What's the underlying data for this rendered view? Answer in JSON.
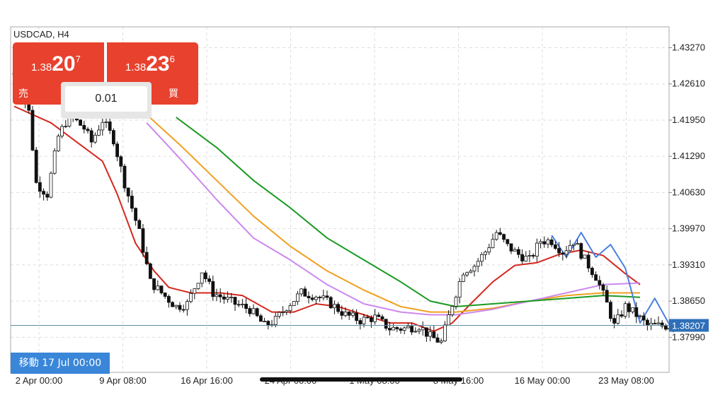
{
  "symbol_label": "USDCAD, H4",
  "trade_panel": {
    "sell": {
      "small": "1.38",
      "big": "20",
      "sup": "7",
      "label": "売"
    },
    "buy": {
      "small": "1.38",
      "big": "23",
      "sup": "6",
      "label": "買"
    },
    "lot_value": "0.01"
  },
  "nav_button_label": "移動 17 Jul 00:00",
  "current_price_label": "1.38207",
  "colors": {
    "bull": "#ffffff",
    "bear": "#111111",
    "ma_red": "#d4281e",
    "ma_orange": "#f0a020",
    "ma_violet": "#cc88ee",
    "ma_green": "#1a9a22",
    "zigzag": "#4a7fe0",
    "price_line": "#5f8fa8",
    "price_tag": "#2e6fb8"
  },
  "chart_data": {
    "type": "candlestick",
    "title": "USDCAD, H4",
    "ylim": [
      1.3735,
      1.4365
    ],
    "y_ticks": [
      "1.43270",
      "1.42610",
      "1.41950",
      "1.41290",
      "1.40630",
      "1.39970",
      "1.39310",
      "1.38650",
      "1.37990"
    ],
    "x_ticks": [
      "2 Apr 00:00",
      "9 Apr 08:00",
      "16 Apr 16:00",
      "24 Apr 00:00",
      "1 May 08:00",
      "8 May 16:00",
      "16 May 00:00",
      "23 May 08:00"
    ],
    "current_price": 1.38207,
    "grid": true,
    "candle_count": 180,
    "close_profile": [
      [
        0,
        1.428
      ],
      [
        4,
        1.421
      ],
      [
        6,
        1.408
      ],
      [
        9,
        1.406
      ],
      [
        12,
        1.4165
      ],
      [
        15,
        1.4205
      ],
      [
        19,
        1.418
      ],
      [
        21,
        1.4155
      ],
      [
        24,
        1.4195
      ],
      [
        27,
        1.416
      ],
      [
        30,
        1.408
      ],
      [
        34,
        1.399
      ],
      [
        37,
        1.39
      ],
      [
        40,
        1.388
      ],
      [
        44,
        1.3855
      ],
      [
        47,
        1.386
      ],
      [
        51,
        1.392
      ],
      [
        54,
        1.388
      ],
      [
        57,
        1.387
      ],
      [
        60,
        1.386
      ],
      [
        64,
        1.385
      ],
      [
        68,
        1.382
      ],
      [
        71,
        1.383
      ],
      [
        74,
        1.3855
      ],
      [
        78,
        1.388
      ],
      [
        82,
        1.3875
      ],
      [
        86,
        1.386
      ],
      [
        90,
        1.384
      ],
      [
        94,
        1.383
      ],
      [
        98,
        1.3835
      ],
      [
        102,
        1.3815
      ],
      [
        106,
        1.3815
      ],
      [
        110,
        1.382
      ],
      [
        113,
        1.38
      ],
      [
        116,
        1.379
      ],
      [
        119,
        1.386
      ],
      [
        122,
        1.392
      ],
      [
        125,
        1.393
      ],
      [
        128,
        1.3955
      ],
      [
        131,
        1.399
      ],
      [
        134,
        1.3965
      ],
      [
        137,
        1.395
      ],
      [
        140,
        1.394
      ],
      [
        143,
        1.3975
      ],
      [
        146,
        1.3975
      ],
      [
        149,
        1.3955
      ],
      [
        152,
        1.3975
      ],
      [
        155,
        1.394
      ],
      [
        158,
        1.391
      ],
      [
        161,
        1.386
      ],
      [
        163,
        1.382
      ],
      [
        166,
        1.3855
      ],
      [
        169,
        1.384
      ],
      [
        172,
        1.382
      ]
    ],
    "series": [
      {
        "name": "",
        "color": "#d4281e",
        "points": [
          [
            0,
            1.422
          ],
          [
            10,
            1.419
          ],
          [
            18,
            1.415
          ],
          [
            24,
            1.412
          ],
          [
            28,
            1.406
          ],
          [
            33,
            1.397
          ],
          [
            38,
            1.392
          ],
          [
            42,
            1.389
          ],
          [
            48,
            1.388
          ],
          [
            56,
            1.388
          ],
          [
            62,
            1.3875
          ],
          [
            70,
            1.3845
          ],
          [
            76,
            1.3845
          ],
          [
            82,
            1.386
          ],
          [
            88,
            1.3855
          ],
          [
            95,
            1.384
          ],
          [
            102,
            1.3825
          ],
          [
            108,
            1.3825
          ],
          [
            114,
            1.381
          ],
          [
            119,
            1.3825
          ],
          [
            124,
            1.386
          ],
          [
            130,
            1.39
          ],
          [
            136,
            1.393
          ],
          [
            142,
            1.3935
          ],
          [
            148,
            1.395
          ],
          [
            154,
            1.3958
          ],
          [
            160,
            1.3948
          ],
          [
            166,
            1.3915
          ],
          [
            170,
            1.3895
          ]
        ]
      },
      {
        "name": "",
        "color": "#f0a020",
        "points": [
          [
            36,
            1.4205
          ],
          [
            45,
            1.415
          ],
          [
            55,
            1.4085
          ],
          [
            65,
            1.402
          ],
          [
            75,
            1.3965
          ],
          [
            85,
            1.392
          ],
          [
            95,
            1.3885
          ],
          [
            105,
            1.3855
          ],
          [
            113,
            1.3845
          ],
          [
            120,
            1.3845
          ],
          [
            130,
            1.3852
          ],
          [
            140,
            1.3865
          ],
          [
            150,
            1.3875
          ],
          [
            160,
            1.388
          ],
          [
            170,
            1.388
          ]
        ]
      },
      {
        "name": "",
        "color": "#cc88ee",
        "points": [
          [
            36,
            1.419
          ],
          [
            45,
            1.4125
          ],
          [
            55,
            1.405
          ],
          [
            65,
            1.398
          ],
          [
            75,
            1.394
          ],
          [
            85,
            1.3895
          ],
          [
            95,
            1.386
          ],
          [
            105,
            1.3845
          ],
          [
            113,
            1.384
          ],
          [
            120,
            1.384
          ],
          [
            130,
            1.385
          ],
          [
            140,
            1.3865
          ],
          [
            150,
            1.388
          ],
          [
            160,
            1.3895
          ],
          [
            170,
            1.3898
          ]
        ]
      },
      {
        "name": "",
        "color": "#1a9a22",
        "points": [
          [
            44,
            1.42
          ],
          [
            55,
            1.4145
          ],
          [
            65,
            1.4085
          ],
          [
            75,
            1.4035
          ],
          [
            85,
            1.398
          ],
          [
            95,
            1.394
          ],
          [
            105,
            1.39
          ],
          [
            113,
            1.3865
          ],
          [
            120,
            1.3855
          ],
          [
            130,
            1.386
          ],
          [
            140,
            1.3865
          ],
          [
            150,
            1.387
          ],
          [
            160,
            1.3875
          ],
          [
            170,
            1.3872
          ]
        ]
      },
      {
        "name": "",
        "color": "#4a7fe0",
        "points": [
          [
            146,
            1.3985
          ],
          [
            150,
            1.3945
          ],
          [
            154,
            1.399
          ],
          [
            158,
            1.3945
          ],
          [
            162,
            1.3968
          ],
          [
            166,
            1.3925
          ],
          [
            170,
            1.3825
          ],
          [
            174,
            1.387
          ],
          [
            178,
            1.3822
          ]
        ]
      }
    ]
  }
}
